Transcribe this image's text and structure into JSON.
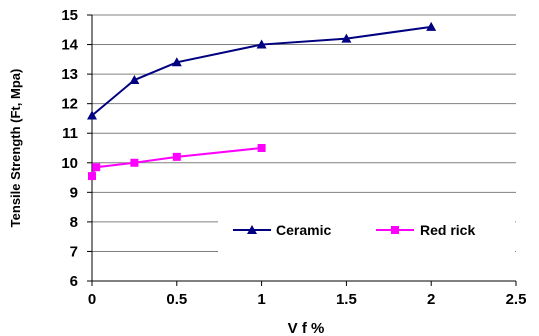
{
  "chart_data": {
    "type": "line",
    "xlabel": "V f %",
    "ylabel": "Tensile Strength (Ft, Mpa)",
    "xlim": [
      0,
      2.5
    ],
    "ylim": [
      6,
      15
    ],
    "x_ticks": [
      "0",
      "0.5",
      "1",
      "1.5",
      "2",
      "2.5"
    ],
    "y_ticks": [
      "6",
      "7",
      "8",
      "9",
      "10",
      "11",
      "12",
      "13",
      "14",
      "15"
    ],
    "grid": "horizontal",
    "legend_position": "bottom-right",
    "series": [
      {
        "name": "Ceramic",
        "color": "#000080",
        "marker": "triangle",
        "x": [
          0,
          0.25,
          0.5,
          1,
          1.5,
          2
        ],
        "y": [
          11.6,
          12.8,
          13.4,
          14.0,
          14.2,
          14.6
        ]
      },
      {
        "name": "Red rick",
        "color": "#ff00ff",
        "marker": "square",
        "x": [
          0,
          0.025,
          0.25,
          0.5,
          1
        ],
        "y": [
          9.55,
          9.85,
          10.0,
          10.2,
          10.5
        ]
      }
    ]
  }
}
